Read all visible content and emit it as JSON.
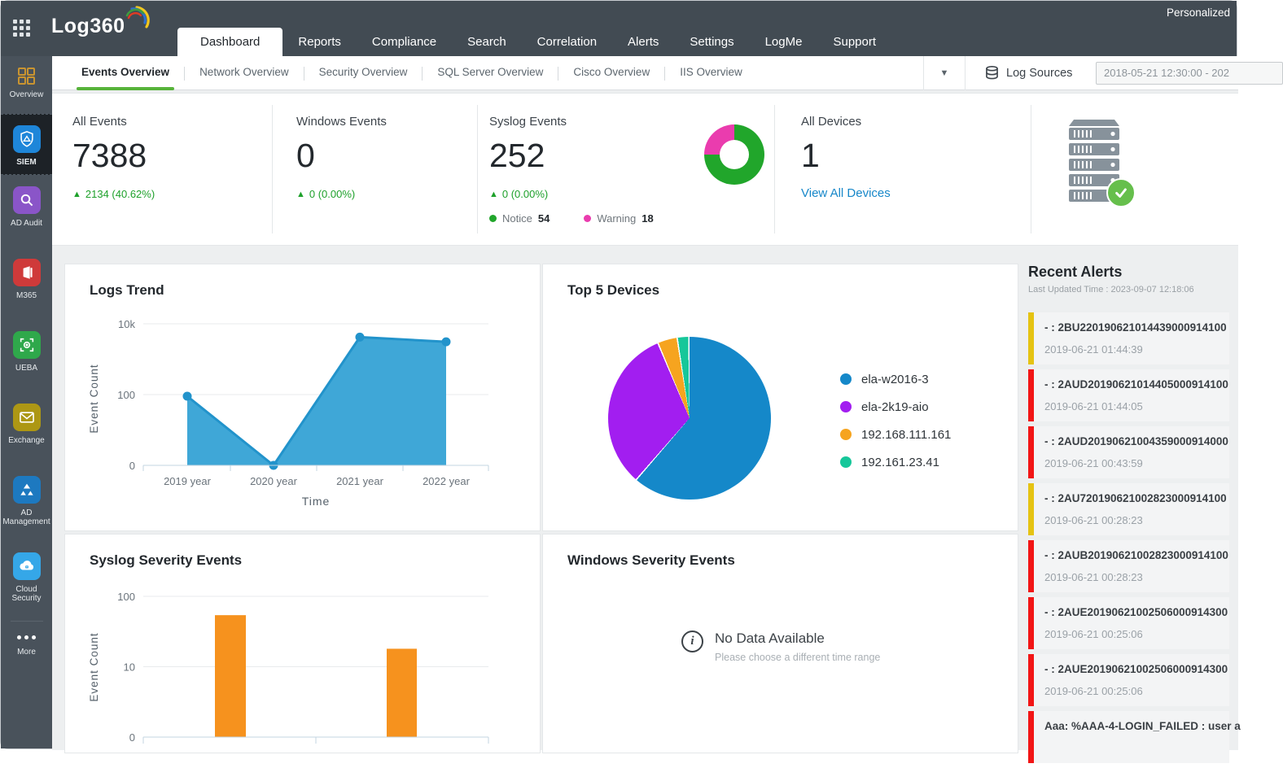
{
  "window": {
    "personalized": "Personalized"
  },
  "topnav": {
    "logo": "Log360",
    "items": [
      {
        "label": "Dashboard",
        "active": true
      },
      {
        "label": "Reports"
      },
      {
        "label": "Compliance"
      },
      {
        "label": "Search"
      },
      {
        "label": "Correlation"
      },
      {
        "label": "Alerts"
      },
      {
        "label": "Settings"
      },
      {
        "label": "LogMe"
      },
      {
        "label": "Support"
      }
    ]
  },
  "subtabs": {
    "items": [
      {
        "label": "Events Overview",
        "active": true
      },
      {
        "label": "Network Overview"
      },
      {
        "label": "Security Overview"
      },
      {
        "label": "SQL Server Overview"
      },
      {
        "label": "Cisco Overview"
      },
      {
        "label": "IIS Overview"
      }
    ],
    "log_sources_label": "Log Sources",
    "date_range": "2018-05-21 12:30:00 - 202"
  },
  "sidebar": {
    "items": [
      {
        "label": "Overview"
      },
      {
        "label": "SIEM",
        "active": true
      },
      {
        "label": "AD Audit"
      },
      {
        "label": "M365"
      },
      {
        "label": "UEBA"
      },
      {
        "label": "Exchange"
      },
      {
        "label": "AD Management"
      },
      {
        "label": "Cloud Security"
      },
      {
        "label": "More"
      }
    ]
  },
  "stats": {
    "all_events": {
      "label": "All Events",
      "value": "7388",
      "delta": "2134 (40.62%)"
    },
    "windows_events": {
      "label": "Windows Events",
      "value": "0",
      "delta": "0 (0.00%)"
    },
    "syslog_events": {
      "label": "Syslog Events",
      "value": "252",
      "delta": "0 (0.00%)",
      "legend": [
        {
          "label": "Notice",
          "value": "54",
          "color": "#21a62b"
        },
        {
          "label": "Warning",
          "value": "18",
          "color": "#ea3cae"
        }
      ]
    },
    "all_devices": {
      "label": "All Devices",
      "value": "1",
      "link": "View All Devices"
    }
  },
  "recent_alerts": {
    "title": "Recent Alerts",
    "last_updated": "Last Updated Time : 2023-09-07 12:18:06",
    "items": [
      {
        "id": "- : 2BU220190621014439000914100",
        "time": "2019-06-21 01:44:39",
        "severity": "yellow",
        "bar_color": "#e5c312"
      },
      {
        "id": "- : 2AUD20190621014405000914100",
        "time": "2019-06-21 01:44:05",
        "severity": "red",
        "bar_color": "#f21515"
      },
      {
        "id": "- : 2AUD20190621004359000914000",
        "time": "2019-06-21 00:43:59",
        "severity": "red",
        "bar_color": "#f21515"
      },
      {
        "id": "- : 2AU720190621002823000914100",
        "time": "2019-06-21 00:28:23",
        "severity": "yellow",
        "bar_color": "#e5c312"
      },
      {
        "id": "- : 2AUB20190621002823000914100",
        "time": "2019-06-21 00:28:23",
        "severity": "red",
        "bar_color": "#f21515"
      },
      {
        "id": "- : 2AUE20190621002506000914300",
        "time": "2019-06-21 00:25:06",
        "severity": "red",
        "bar_color": "#f21515"
      },
      {
        "id": "- : 2AUE20190621002506000914300",
        "time": "2019-06-21 00:25:06",
        "severity": "red",
        "bar_color": "#f21515"
      },
      {
        "id": "Aaa: %AAA-4-LOGIN_FAILED : user a",
        "time": "",
        "severity": "red",
        "bar_color": "#f21515"
      }
    ]
  },
  "windows_severity": {
    "title": "Windows Severity Events",
    "no_data": "No Data Available",
    "hint": "Please choose a different time range",
    "info_glyph": "i"
  },
  "chart_data": [
    {
      "id": "logs_trend",
      "type": "area",
      "title": "Logs Trend",
      "xlabel": "Time",
      "ylabel": "Event Count",
      "yscale": "log",
      "x": [
        "2019 year",
        "2020 year",
        "2021 year",
        "2022 year"
      ],
      "values": [
        90,
        0,
        4200,
        3100
      ],
      "yticks": [
        "0",
        "100",
        "10k"
      ],
      "color": "#3fa7d7",
      "line_color": "#2293cb"
    },
    {
      "id": "top5_devices",
      "type": "pie",
      "title": "Top 5 Devices",
      "slices": [
        {
          "label": "ela-w2016-3",
          "percent": 61.5,
          "color": "#1588c9"
        },
        {
          "label": "ela-2k19-aio",
          "percent": 32.3,
          "color": "#a21ef0"
        },
        {
          "label": "192.168.111.161",
          "percent": 3.9,
          "color": "#f6a41f"
        },
        {
          "label": "192.161.23.41",
          "percent": 2.3,
          "color": "#16c79a"
        }
      ]
    },
    {
      "id": "syslog_severity",
      "type": "bar",
      "title": "Syslog Severity Events",
      "ylabel": "Event Count",
      "yscale": "log",
      "values": [
        54,
        18
      ],
      "yticks": [
        "0",
        "10",
        "100"
      ],
      "color": "#f6921e"
    },
    {
      "id": "events_donut",
      "type": "donut",
      "segments": [
        {
          "label": "Notice",
          "value": 54,
          "color": "#21a62b"
        },
        {
          "label": "Warning",
          "value": 18,
          "color": "#ea3cae"
        }
      ]
    }
  ]
}
